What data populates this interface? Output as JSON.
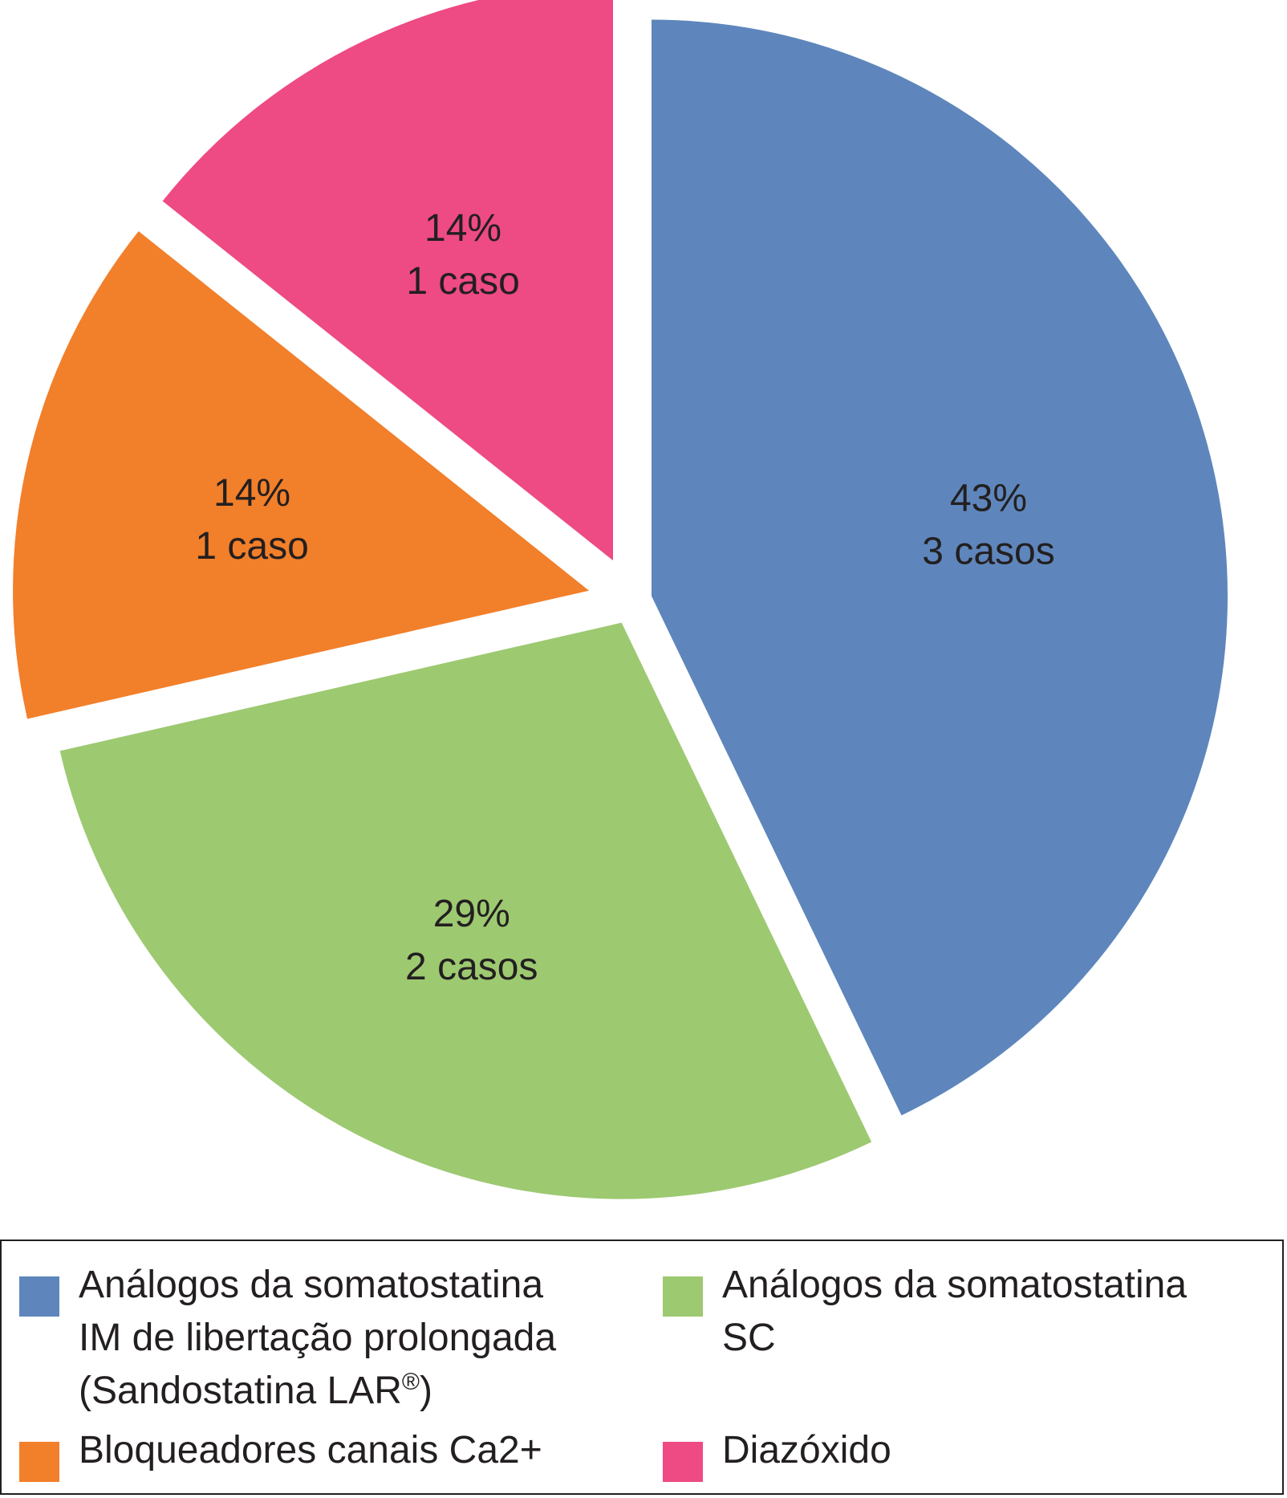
{
  "chart_data": {
    "type": "pie",
    "title": "",
    "slices": [
      {
        "name": "Análogos da somatostatina IM de libertação prolongada (Sandostatina LAR®)",
        "value": 3,
        "percent_label": "43%",
        "count_label": "3 casos",
        "color": "#5e86bc"
      },
      {
        "name": "Análogos da somatostatina SC",
        "value": 2,
        "percent_label": "29%",
        "count_label": "2 casos",
        "color": "#9dc971"
      },
      {
        "name": "Bloqueadores canais Ca2+",
        "value": 1,
        "percent_label": "14%",
        "count_label": "1 caso",
        "color": "#f27f2a"
      },
      {
        "name": "Diazóxido",
        "value": 1,
        "percent_label": "14%",
        "count_label": "1 caso",
        "color": "#ee4a84"
      }
    ],
    "legend": {
      "placement": "bottom",
      "items": [
        {
          "lines": [
            "Análogos da somatostatina",
            "IM de libertação prolongada",
            "(Sandostatina LAR",
            "®",
            ")"
          ],
          "color": "#5e86bc"
        },
        {
          "lines": [
            "Análogos da somatostatina",
            "SC"
          ],
          "color": "#9dc971"
        },
        {
          "lines": [
            "Bloqueadores canais Ca2+"
          ],
          "color": "#f27f2a"
        },
        {
          "lines": [
            "Diazóxido"
          ],
          "color": "#ee4a84"
        }
      ]
    }
  }
}
